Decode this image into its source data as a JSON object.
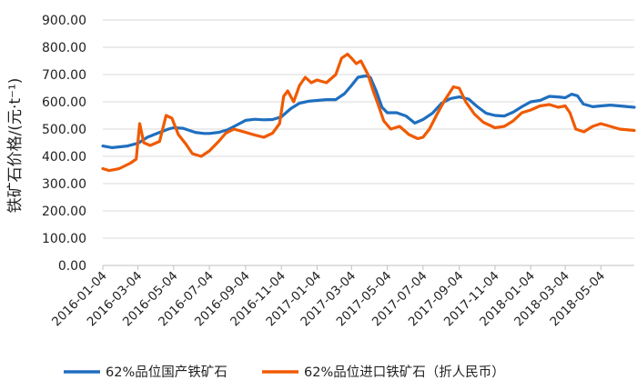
{
  "chart_data": {
    "type": "line",
    "ylabel": "铁矿石价格/(元·t⁻¹)",
    "ylim": [
      0,
      900
    ],
    "yticks": [
      "0.00",
      "100.00",
      "200.00",
      "300.00",
      "400.00",
      "500.00",
      "600.00",
      "700.00",
      "800.00",
      "900.00"
    ],
    "x_tick_labels": [
      "2016-01-04",
      "2016-03-04",
      "2016-05-04",
      "2016-07-04",
      "2016-09-04",
      "2016-11-04",
      "2017-01-04",
      "2017-03-04",
      "2017-05-04",
      "2017-07-04",
      "2017-09-04",
      "2017-11-04",
      "2018-01-04",
      "2018-03-04",
      "2018-05-04"
    ],
    "x_range": [
      "2016-01-04",
      "2018-06-30"
    ],
    "grid": "horizontal",
    "legend_position": "bottom",
    "series": [
      {
        "name": "62%品位国产铁矿石",
        "color": "#1f6fbf",
        "points": [
          [
            "2016-01-04",
            438
          ],
          [
            "2016-01-20",
            432
          ],
          [
            "2016-02-15",
            438
          ],
          [
            "2016-03-04",
            448
          ],
          [
            "2016-03-20",
            470
          ],
          [
            "2016-04-10",
            488
          ],
          [
            "2016-04-25",
            500
          ],
          [
            "2016-05-04",
            505
          ],
          [
            "2016-05-20",
            503
          ],
          [
            "2016-06-10",
            488
          ],
          [
            "2016-06-25",
            484
          ],
          [
            "2016-07-04",
            484
          ],
          [
            "2016-07-20",
            488
          ],
          [
            "2016-08-05",
            498
          ],
          [
            "2016-08-20",
            515
          ],
          [
            "2016-09-04",
            532
          ],
          [
            "2016-09-20",
            536
          ],
          [
            "2016-10-05",
            534
          ],
          [
            "2016-10-20",
            535
          ],
          [
            "2016-11-04",
            545
          ],
          [
            "2016-11-20",
            575
          ],
          [
            "2016-12-05",
            595
          ],
          [
            "2016-12-20",
            602
          ],
          [
            "2017-01-04",
            605
          ],
          [
            "2017-01-20",
            608
          ],
          [
            "2017-02-05",
            608
          ],
          [
            "2017-02-20",
            630
          ],
          [
            "2017-03-04",
            660
          ],
          [
            "2017-03-15",
            690
          ],
          [
            "2017-03-28",
            695
          ],
          [
            "2017-04-05",
            690
          ],
          [
            "2017-04-15",
            640
          ],
          [
            "2017-04-25",
            580
          ],
          [
            "2017-05-04",
            560
          ],
          [
            "2017-05-20",
            560
          ],
          [
            "2017-06-05",
            548
          ],
          [
            "2017-06-20",
            522
          ],
          [
            "2017-07-04",
            535
          ],
          [
            "2017-07-20",
            558
          ],
          [
            "2017-08-05",
            595
          ],
          [
            "2017-08-20",
            612
          ],
          [
            "2017-09-04",
            618
          ],
          [
            "2017-09-20",
            610
          ],
          [
            "2017-10-05",
            582
          ],
          [
            "2017-10-20",
            558
          ],
          [
            "2017-11-04",
            550
          ],
          [
            "2017-11-20",
            548
          ],
          [
            "2017-12-05",
            562
          ],
          [
            "2017-12-20",
            582
          ],
          [
            "2018-01-04",
            600
          ],
          [
            "2018-01-20",
            605
          ],
          [
            "2018-02-05",
            620
          ],
          [
            "2018-02-20",
            618
          ],
          [
            "2018-03-04",
            615
          ],
          [
            "2018-03-15",
            628
          ],
          [
            "2018-03-25",
            622
          ],
          [
            "2018-04-04",
            592
          ],
          [
            "2018-04-20",
            582
          ],
          [
            "2018-05-04",
            585
          ],
          [
            "2018-05-20",
            588
          ],
          [
            "2018-06-05",
            585
          ],
          [
            "2018-06-30",
            580
          ]
        ]
      },
      {
        "name": "62%品位进口铁矿石（折人民币）",
        "color": "#f05a00",
        "points": [
          [
            "2016-01-04",
            355
          ],
          [
            "2016-01-15",
            348
          ],
          [
            "2016-02-01",
            355
          ],
          [
            "2016-02-20",
            375
          ],
          [
            "2016-03-01",
            390
          ],
          [
            "2016-03-07",
            520
          ],
          [
            "2016-03-14",
            450
          ],
          [
            "2016-03-25",
            440
          ],
          [
            "2016-04-10",
            455
          ],
          [
            "2016-04-21",
            550
          ],
          [
            "2016-05-01",
            540
          ],
          [
            "2016-05-12",
            480
          ],
          [
            "2016-05-25",
            445
          ],
          [
            "2016-06-05",
            410
          ],
          [
            "2016-06-20",
            400
          ],
          [
            "2016-07-04",
            420
          ],
          [
            "2016-07-20",
            455
          ],
          [
            "2016-08-01",
            485
          ],
          [
            "2016-08-15",
            500
          ],
          [
            "2016-09-04",
            488
          ],
          [
            "2016-09-20",
            478
          ],
          [
            "2016-10-05",
            470
          ],
          [
            "2016-10-20",
            485
          ],
          [
            "2016-11-01",
            520
          ],
          [
            "2016-11-08",
            620
          ],
          [
            "2016-11-15",
            640
          ],
          [
            "2016-11-25",
            600
          ],
          [
            "2016-12-05",
            660
          ],
          [
            "2016-12-15",
            690
          ],
          [
            "2016-12-25",
            670
          ],
          [
            "2017-01-04",
            680
          ],
          [
            "2017-01-20",
            670
          ],
          [
            "2017-02-05",
            700
          ],
          [
            "2017-02-15",
            760
          ],
          [
            "2017-02-25",
            775
          ],
          [
            "2017-03-04",
            760
          ],
          [
            "2017-03-12",
            740
          ],
          [
            "2017-03-20",
            750
          ],
          [
            "2017-04-01",
            700
          ],
          [
            "2017-04-10",
            640
          ],
          [
            "2017-04-20",
            580
          ],
          [
            "2017-04-28",
            530
          ],
          [
            "2017-05-10",
            500
          ],
          [
            "2017-05-25",
            510
          ],
          [
            "2017-06-10",
            480
          ],
          [
            "2017-06-25",
            465
          ],
          [
            "2017-07-04",
            470
          ],
          [
            "2017-07-15",
            500
          ],
          [
            "2017-07-28",
            555
          ],
          [
            "2017-08-10",
            605
          ],
          [
            "2017-08-25",
            655
          ],
          [
            "2017-09-04",
            650
          ],
          [
            "2017-09-15",
            600
          ],
          [
            "2017-09-30",
            555
          ],
          [
            "2017-10-15",
            525
          ],
          [
            "2017-11-04",
            505
          ],
          [
            "2017-11-20",
            510
          ],
          [
            "2017-12-05",
            530
          ],
          [
            "2017-12-20",
            560
          ],
          [
            "2018-01-04",
            570
          ],
          [
            "2018-01-20",
            585
          ],
          [
            "2018-02-05",
            590
          ],
          [
            "2018-02-20",
            580
          ],
          [
            "2018-03-04",
            585
          ],
          [
            "2018-03-12",
            560
          ],
          [
            "2018-03-22",
            500
          ],
          [
            "2018-04-05",
            490
          ],
          [
            "2018-04-20",
            510
          ],
          [
            "2018-05-04",
            520
          ],
          [
            "2018-05-20",
            510
          ],
          [
            "2018-06-05",
            500
          ],
          [
            "2018-06-30",
            495
          ]
        ]
      }
    ]
  }
}
